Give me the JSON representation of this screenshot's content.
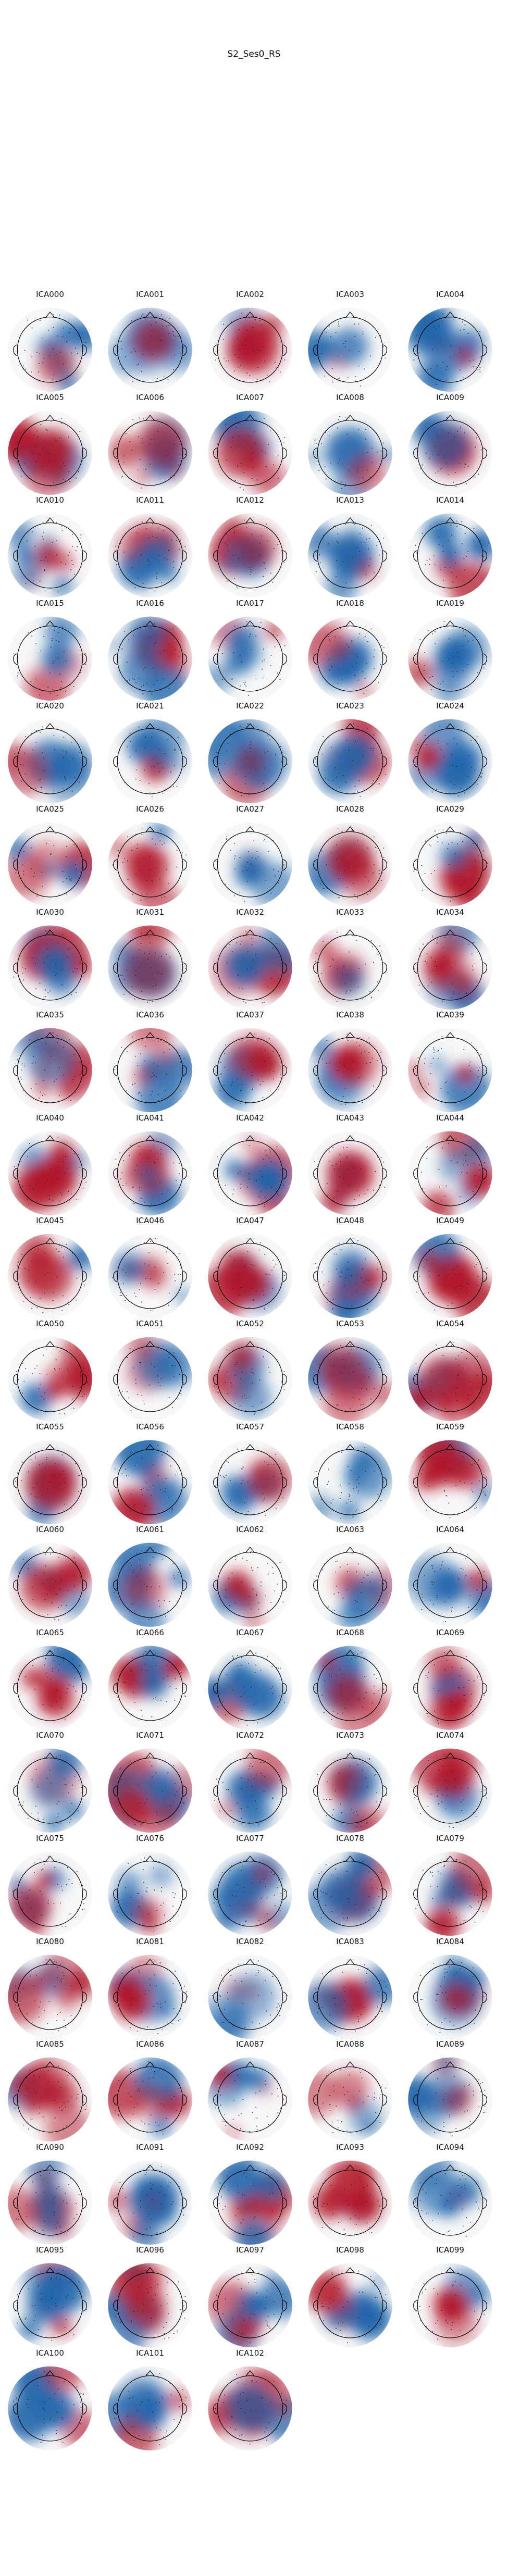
{
  "figure": {
    "title": "S2_Ses0_RS"
  },
  "colors": {
    "positive": "#b2182b",
    "negative": "#2166ac",
    "neutral": "#f7f7f7",
    "outline": "#000000"
  },
  "components": [
    "ICA000",
    "ICA001",
    "ICA002",
    "ICA003",
    "ICA004",
    "ICA005",
    "ICA006",
    "ICA007",
    "ICA008",
    "ICA009",
    "ICA010",
    "ICA011",
    "ICA012",
    "ICA013",
    "ICA014",
    "ICA015",
    "ICA016",
    "ICA017",
    "ICA018",
    "ICA019",
    "ICA020",
    "ICA021",
    "ICA022",
    "ICA023",
    "ICA024",
    "ICA025",
    "ICA026",
    "ICA027",
    "ICA028",
    "ICA029",
    "ICA030",
    "ICA031",
    "ICA032",
    "ICA033",
    "ICA034",
    "ICA035",
    "ICA036",
    "ICA037",
    "ICA038",
    "ICA039",
    "ICA040",
    "ICA041",
    "ICA042",
    "ICA043",
    "ICA044",
    "ICA045",
    "ICA046",
    "ICA047",
    "ICA048",
    "ICA049",
    "ICA050",
    "ICA051",
    "ICA052",
    "ICA053",
    "ICA054",
    "ICA055",
    "ICA056",
    "ICA057",
    "ICA058",
    "ICA059",
    "ICA060",
    "ICA061",
    "ICA062",
    "ICA063",
    "ICA064",
    "ICA065",
    "ICA066",
    "ICA067",
    "ICA068",
    "ICA069",
    "ICA070",
    "ICA071",
    "ICA072",
    "ICA073",
    "ICA074",
    "ICA075",
    "ICA076",
    "ICA077",
    "ICA078",
    "ICA079",
    "ICA080",
    "ICA081",
    "ICA082",
    "ICA083",
    "ICA084",
    "ICA085",
    "ICA086",
    "ICA087",
    "ICA088",
    "ICA089",
    "ICA090",
    "ICA091",
    "ICA092",
    "ICA093",
    "ICA094",
    "ICA095",
    "ICA096",
    "ICA097",
    "ICA098",
    "ICA099",
    "ICA100",
    "ICA101",
    "ICA102"
  ]
}
